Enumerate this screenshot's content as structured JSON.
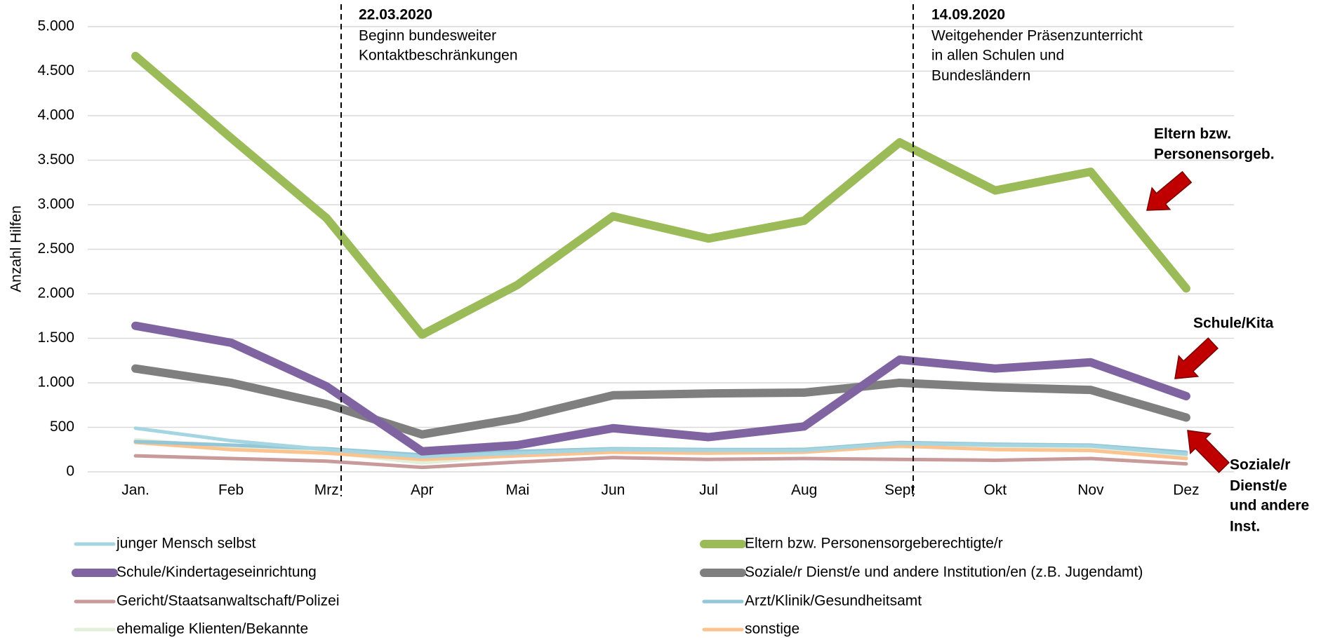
{
  "chart_data": {
    "type": "line",
    "y_label": "Anzahl Hilfen",
    "categories": [
      "Jan.",
      "Feb",
      "Mrz",
      "Apr",
      "Mai",
      "Jun",
      "Jul",
      "Aug",
      "Sept",
      "Okt",
      "Nov",
      "Dez"
    ],
    "ylim": [
      0,
      5000
    ],
    "yticks": [
      0,
      500,
      {
        "value": 1000,
        "label": "1.000"
      },
      {
        "value": 1500,
        "label": "1.500"
      },
      {
        "value": 2000,
        "label": "2.000"
      },
      {
        "value": 2500,
        "label": "2.500"
      },
      {
        "value": 3000,
        "label": "3.000"
      },
      {
        "value": 3500,
        "label": "3.500"
      },
      {
        "value": 4000,
        "label": "4.000"
      },
      {
        "value": 4500,
        "label": "4.500"
      },
      {
        "value": 5000,
        "label": "5.000"
      }
    ],
    "grid": true,
    "series": [
      {
        "name": "junger Mensch selbst",
        "color": "#a5d5e0",
        "values": [
          490,
          350,
          250,
          170,
          210,
          250,
          240,
          240,
          320,
          300,
          290,
          200
        ]
      },
      {
        "name": "Eltern bzw. Personensorgeberechtigte/r",
        "color": "#9bbb59",
        "values": [
          4670,
          3750,
          2850,
          1540,
          2100,
          2870,
          2620,
          2820,
          3700,
          3160,
          3370,
          2060
        ]
      },
      {
        "name": "Schule/Kindertageseinrichtung",
        "color": "#8064a2",
        "values": [
          1640,
          1450,
          960,
          230,
          300,
          490,
          390,
          510,
          1260,
          1160,
          1230,
          850
        ]
      },
      {
        "name": "Soziale/r Dienst/e und andere Institution/en (z.B. Jugendamt)",
        "color": "#7f7f7f",
        "values": [
          1160,
          1000,
          760,
          420,
          600,
          860,
          880,
          890,
          1000,
          950,
          920,
          610
        ]
      },
      {
        "name": "Gericht/Staatsanwaltschaft/Polizei",
        "color": "#c99a9a",
        "values": [
          180,
          150,
          120,
          50,
          110,
          160,
          140,
          150,
          140,
          130,
          150,
          90
        ]
      },
      {
        "name": "Arzt/Klinik/Gesundheitsamt",
        "color": "#93c6d6",
        "values": [
          340,
          300,
          260,
          190,
          230,
          260,
          250,
          250,
          330,
          310,
          300,
          220
        ]
      },
      {
        "name": "ehemalige Klienten/Bekannte",
        "color": "#e4efd9",
        "values": [
          360,
          280,
          220,
          100,
          190,
          230,
          220,
          260,
          280,
          280,
          270,
          170
        ]
      },
      {
        "name": "sonstige",
        "color": "#fac38f",
        "values": [
          330,
          250,
          210,
          140,
          180,
          220,
          210,
          220,
          290,
          250,
          240,
          150
        ]
      }
    ],
    "annotations": [
      {
        "lines": [
          "22.03.2020",
          "Beginn bundesweiter",
          "Kontaktbeschränkungen"
        ]
      },
      {
        "lines": [
          "14.09.2020",
          "Weitgehender Präsenzunterricht",
          "in allen Schulen und",
          "Bundesländern"
        ]
      }
    ],
    "arrow_labels": [
      {
        "lines": [
          "Eltern bzw.",
          "Personensorgeb."
        ]
      },
      {
        "lines": [
          "Schule/Kita"
        ]
      },
      {
        "lines": [
          "Soziale/r",
          "Dienst/e",
          "und andere",
          "Inst."
        ]
      }
    ]
  }
}
